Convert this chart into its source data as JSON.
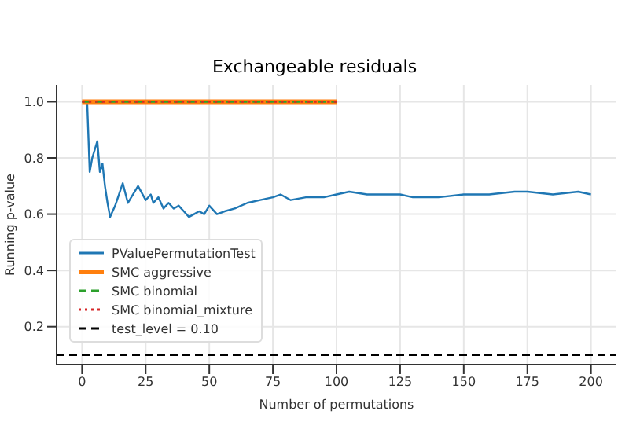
{
  "chart_data": {
    "type": "line",
    "title": "Exchangeable residuals",
    "xlabel": "Number of permutations",
    "ylabel": "Running p-value",
    "xlim": [
      -10,
      210
    ],
    "ylim": [
      0.065,
      1.06
    ],
    "xticks": [
      0,
      25,
      50,
      75,
      100,
      125,
      150,
      175,
      200
    ],
    "yticks": [
      0.2,
      0.4,
      0.6,
      0.8,
      {
        "value": 1,
        "label": "1.0"
      }
    ],
    "grid": true,
    "legend": "bottom left",
    "marker": "none",
    "series": [
      {
        "name": "PValuePermutationTest",
        "color": "#1f77b4",
        "line_style": "solid",
        "x": [
          1,
          2,
          3,
          4,
          5,
          6,
          7,
          8,
          9,
          10,
          11,
          13,
          16,
          18,
          22,
          25,
          27,
          28,
          30,
          32,
          34,
          36,
          38,
          40,
          42,
          44,
          46,
          48,
          50,
          53,
          56,
          60,
          65,
          70,
          75,
          78,
          82,
          88,
          95,
          100,
          105,
          112,
          120,
          125,
          130,
          135,
          140,
          150,
          160,
          170,
          175,
          185,
          195,
          200
        ],
        "values": [
          1.0,
          1.0,
          0.75,
          0.8,
          0.83,
          0.86,
          0.75,
          0.78,
          0.7,
          0.64,
          0.59,
          0.63,
          0.71,
          0.64,
          0.7,
          0.65,
          0.67,
          0.64,
          0.66,
          0.62,
          0.64,
          0.62,
          0.63,
          0.61,
          0.59,
          0.6,
          0.61,
          0.6,
          0.63,
          0.6,
          0.61,
          0.62,
          0.64,
          0.65,
          0.66,
          0.67,
          0.65,
          0.66,
          0.66,
          0.67,
          0.68,
          0.67,
          0.67,
          0.67,
          0.66,
          0.66,
          0.66,
          0.67,
          0.67,
          0.68,
          0.68,
          0.67,
          0.68,
          0.67
        ]
      },
      {
        "name": "SMC aggressive",
        "color": "#ff7f0e",
        "line_style": "solid",
        "x": [
          0,
          100
        ],
        "values": [
          1.0,
          1.0
        ]
      },
      {
        "name": "SMC binomial",
        "color": "#2ca02c",
        "line_style": "dashed",
        "x": [
          0,
          100
        ],
        "values": [
          1.0,
          1.0
        ]
      },
      {
        "name": "SMC binomial_mixture",
        "color": "#d62728",
        "line_style": "dotted",
        "x": [
          0,
          100
        ],
        "values": [
          1.0,
          1.0
        ]
      }
    ],
    "ref_lines": [
      {
        "axis": "y",
        "value": 0.1,
        "label": "test_level = 0.10",
        "color": "#000000",
        "line_style": "dashed"
      }
    ]
  }
}
